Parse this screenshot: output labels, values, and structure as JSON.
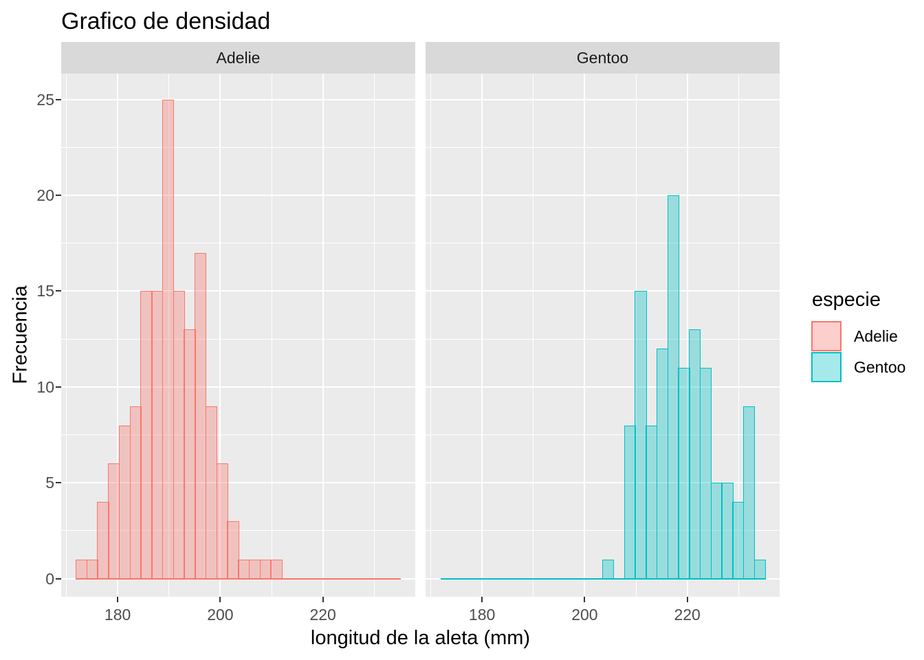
{
  "chart_data": {
    "type": "histogram",
    "title": "Grafico de densidad",
    "xlabel": "longitud de la aleta (mm)",
    "ylabel": "Frecuencia",
    "legend": {
      "title": "especie",
      "entries": [
        {
          "label": "Adelie"
        },
        {
          "label": "Gentoo"
        }
      ]
    },
    "x_domain": [
      169,
      238
    ],
    "y_domain": [
      -0.95,
      26.35
    ],
    "x_ticks": [
      180,
      200,
      220
    ],
    "x_minor_ticks": [
      170,
      190,
      210,
      230
    ],
    "y_ticks": [
      0,
      5,
      10,
      15,
      20,
      25
    ],
    "y_minor_ticks": [
      2.5,
      7.5,
      12.5,
      17.5,
      22.5
    ],
    "bin_start_mm": 171.9,
    "binwidth_mm": 2.11,
    "zero_line_mm": [
      171.9,
      235.2
    ],
    "facets": [
      {
        "label": "Adelie",
        "stroke": "#F8766D",
        "fill": "rgba(248,118,109,0.35)",
        "first_bin": 0,
        "counts": [
          1,
          1,
          4,
          6,
          8,
          9,
          15,
          15,
          25,
          15,
          13,
          17,
          9,
          6,
          3,
          1,
          1,
          1,
          1
        ]
      },
      {
        "label": "Gentoo",
        "stroke": "#00BFC4",
        "fill": "rgba(0,191,196,0.35)",
        "first_bin": 15,
        "counts": [
          1,
          0,
          8,
          15,
          8,
          12,
          20,
          11,
          13,
          11,
          5,
          5,
          4,
          9,
          1
        ]
      }
    ],
    "colors": {
      "panel_bg": "#EBEBEB",
      "strip_bg": "#D9D9D9",
      "gridline": "#FFFFFF",
      "axis_text": "#4D4D4D",
      "tick_mark": "#333333",
      "adelie": "#F8766D",
      "gentoo": "#00BFC4"
    }
  }
}
